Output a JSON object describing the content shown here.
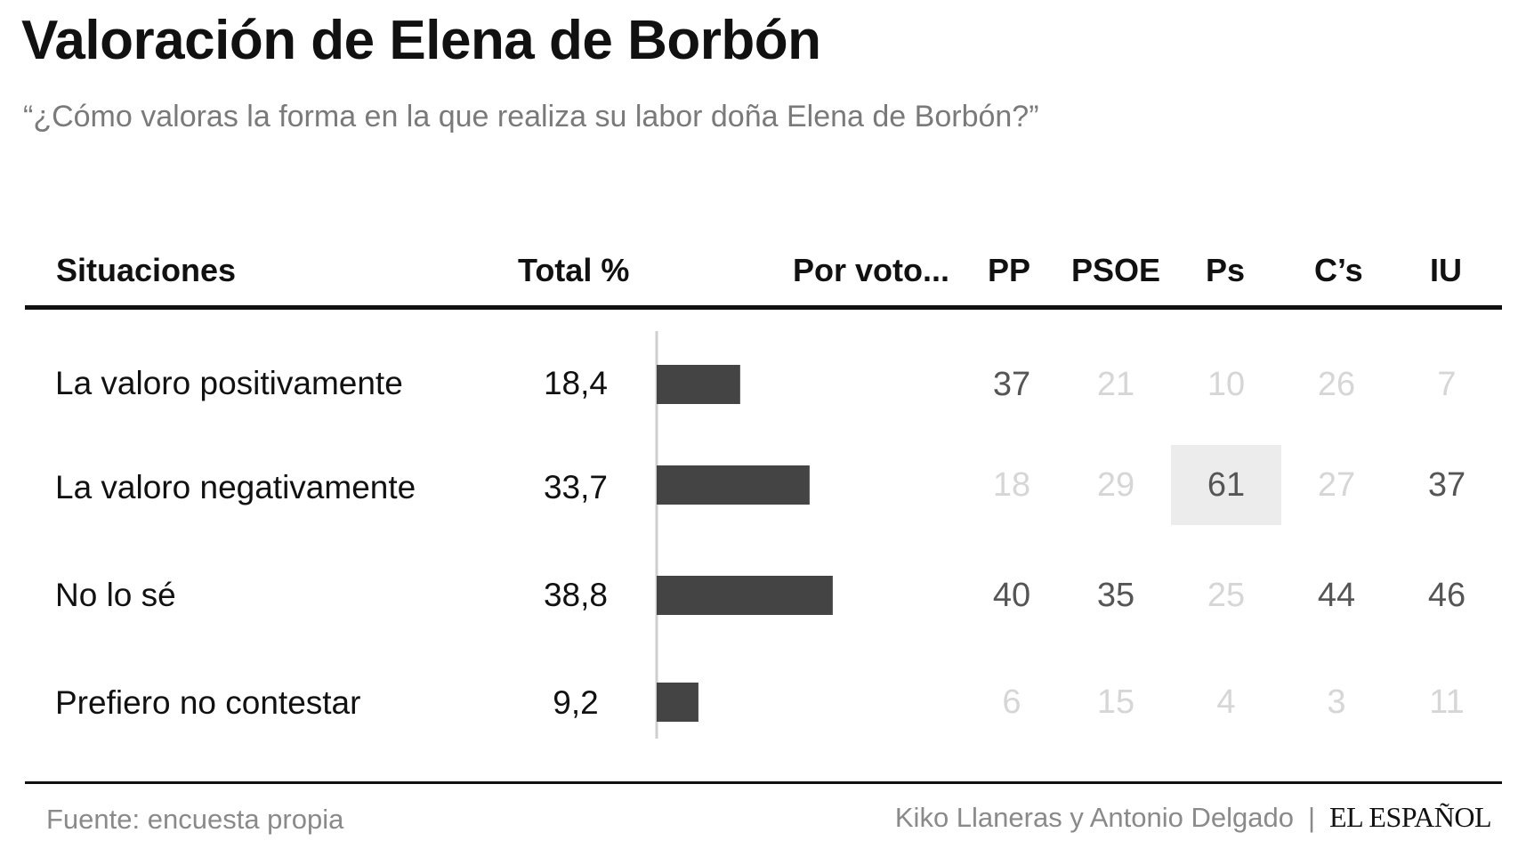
{
  "title": "Valoración de Elena de Borbón",
  "subtitle": "“¿Cómo valoras la forma en la que realiza su labor doña Elena de Borbón?”",
  "headers": {
    "situaciones": "Situaciones",
    "total": "Total %",
    "por_voto": "Por voto...",
    "parties": [
      "PP",
      "PSOE",
      "Ps",
      "C’s",
      "IU"
    ]
  },
  "chart_data": {
    "type": "table",
    "rows": [
      {
        "label": "La valoro positivamente",
        "total": "18,4",
        "value": 18.4,
        "by_party": [
          "37",
          "21",
          "10",
          "26",
          "7"
        ]
      },
      {
        "label": "La valoro negativamente",
        "total": "33,7",
        "value": 33.7,
        "by_party": [
          "18",
          "29",
          "61",
          "27",
          "37"
        ]
      },
      {
        "label": "No lo sé",
        "total": "38,8",
        "value": 38.8,
        "by_party": [
          "40",
          "35",
          "25",
          "44",
          "46"
        ]
      },
      {
        "label": "Prefiero no contestar",
        "total": "9,2",
        "value": 9.2,
        "by_party": [
          "6",
          "15",
          "4",
          "3",
          "11"
        ]
      }
    ],
    "highlighted": [
      [
        true,
        false,
        false,
        false,
        false
      ],
      [
        false,
        false,
        true,
        false,
        true
      ],
      [
        true,
        true,
        false,
        true,
        true
      ],
      [
        false,
        false,
        false,
        false,
        false
      ]
    ],
    "boxed": [
      [
        false,
        false,
        false,
        false,
        false
      ],
      [
        false,
        false,
        true,
        false,
        false
      ],
      [
        false,
        false,
        false,
        false,
        false
      ],
      [
        false,
        false,
        false,
        false,
        false
      ]
    ],
    "bar_color": "#444444",
    "highlight_text_color": "#555555",
    "muted_text_color": "#d6d6d6",
    "box_color": "#ececec"
  },
  "footer": {
    "source": "Fuente: encuesta propia",
    "authors": "Kiko Llaneras y Antonio Delgado",
    "separator": "|",
    "brand": "EL ESPAÑOL"
  }
}
